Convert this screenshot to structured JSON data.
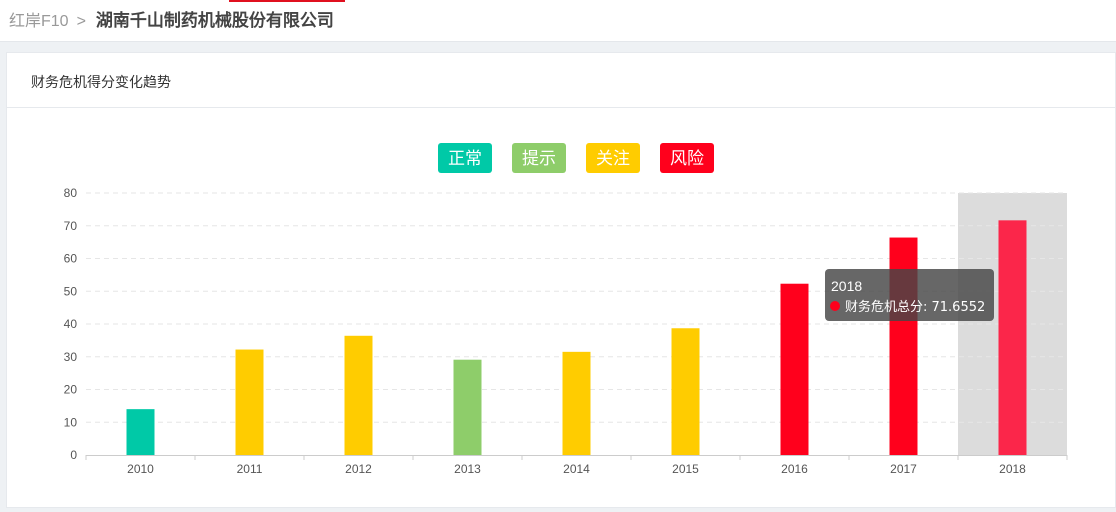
{
  "breadcrumb": {
    "root": "红岸F10",
    "separator": ">",
    "company": "湖南千山制药机械股份有限公司"
  },
  "panel": {
    "title": "财务危机得分变化趋势"
  },
  "legend": [
    {
      "label": "正常",
      "color": "#00c9a7"
    },
    {
      "label": "提示",
      "color": "#8ecd6a"
    },
    {
      "label": "关注",
      "color": "#ffcc00"
    },
    {
      "label": "风险",
      "color": "#ff001c"
    }
  ],
  "chart_data": {
    "type": "bar",
    "categories": [
      "2010",
      "2011",
      "2012",
      "2013",
      "2014",
      "2015",
      "2016",
      "2017",
      "2018"
    ],
    "values": [
      14,
      32.2,
      36.4,
      29.1,
      31.5,
      38.7,
      52.3,
      66.4,
      71.6552
    ],
    "bar_colors": [
      "#00c9a7",
      "#ffcc00",
      "#ffcc00",
      "#8ecd6a",
      "#ffcc00",
      "#ffcc00",
      "#ff001c",
      "#ff001c",
      "#fb264a"
    ],
    "ylim": [
      0,
      80
    ],
    "yticks": [
      "0",
      "10",
      "20",
      "30",
      "40",
      "50",
      "60",
      "70",
      "80"
    ],
    "grid": true,
    "highlighted_category": "2018",
    "tooltip": {
      "title": "2018",
      "series_label": "财务危机总分",
      "value_text": "71.6552",
      "marker_color": "#ff001c"
    },
    "xlabel": "",
    "ylabel": ""
  }
}
